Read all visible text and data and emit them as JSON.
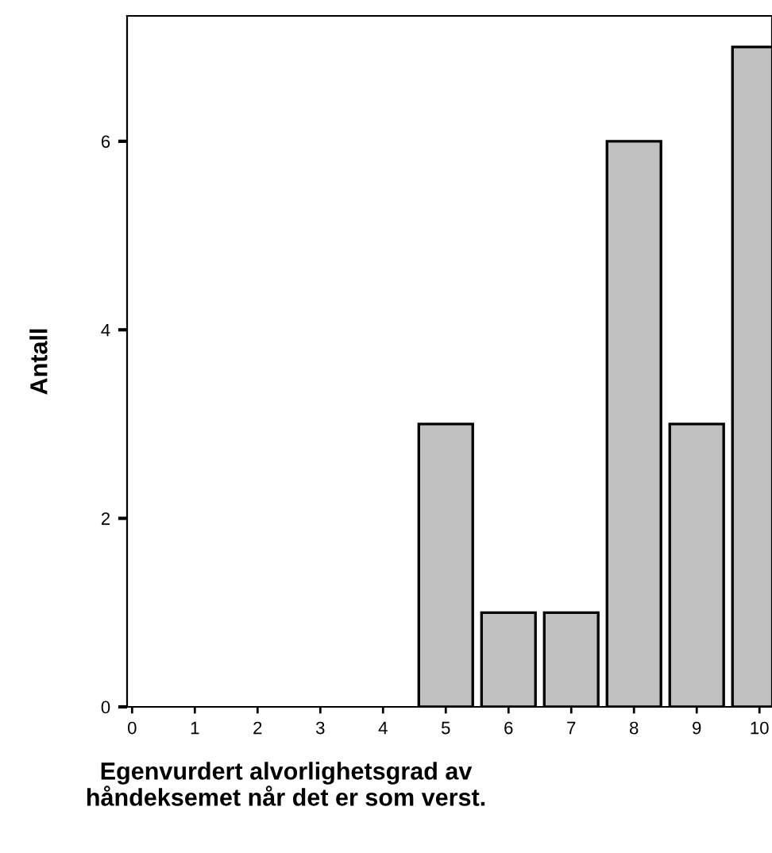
{
  "chart_data": {
    "type": "bar",
    "xlabel": "Egenvurdert alvorlighetsgrad av\nhåndeksemet når det er som verst.",
    "ylabel": "Antall",
    "x": [
      5,
      6,
      7,
      8,
      9,
      10
    ],
    "values": [
      3,
      1,
      1,
      6,
      3,
      7
    ],
    "color": "#c0c0c0",
    "xlim": [
      -0.08,
      10.2
    ],
    "xticks": [
      0,
      1,
      2,
      3,
      4,
      5,
      6,
      7,
      8,
      9,
      10
    ],
    "ylim": [
      0,
      7.33
    ],
    "yticks": [
      0,
      2,
      4,
      6
    ],
    "grid": false,
    "legend": false
  }
}
